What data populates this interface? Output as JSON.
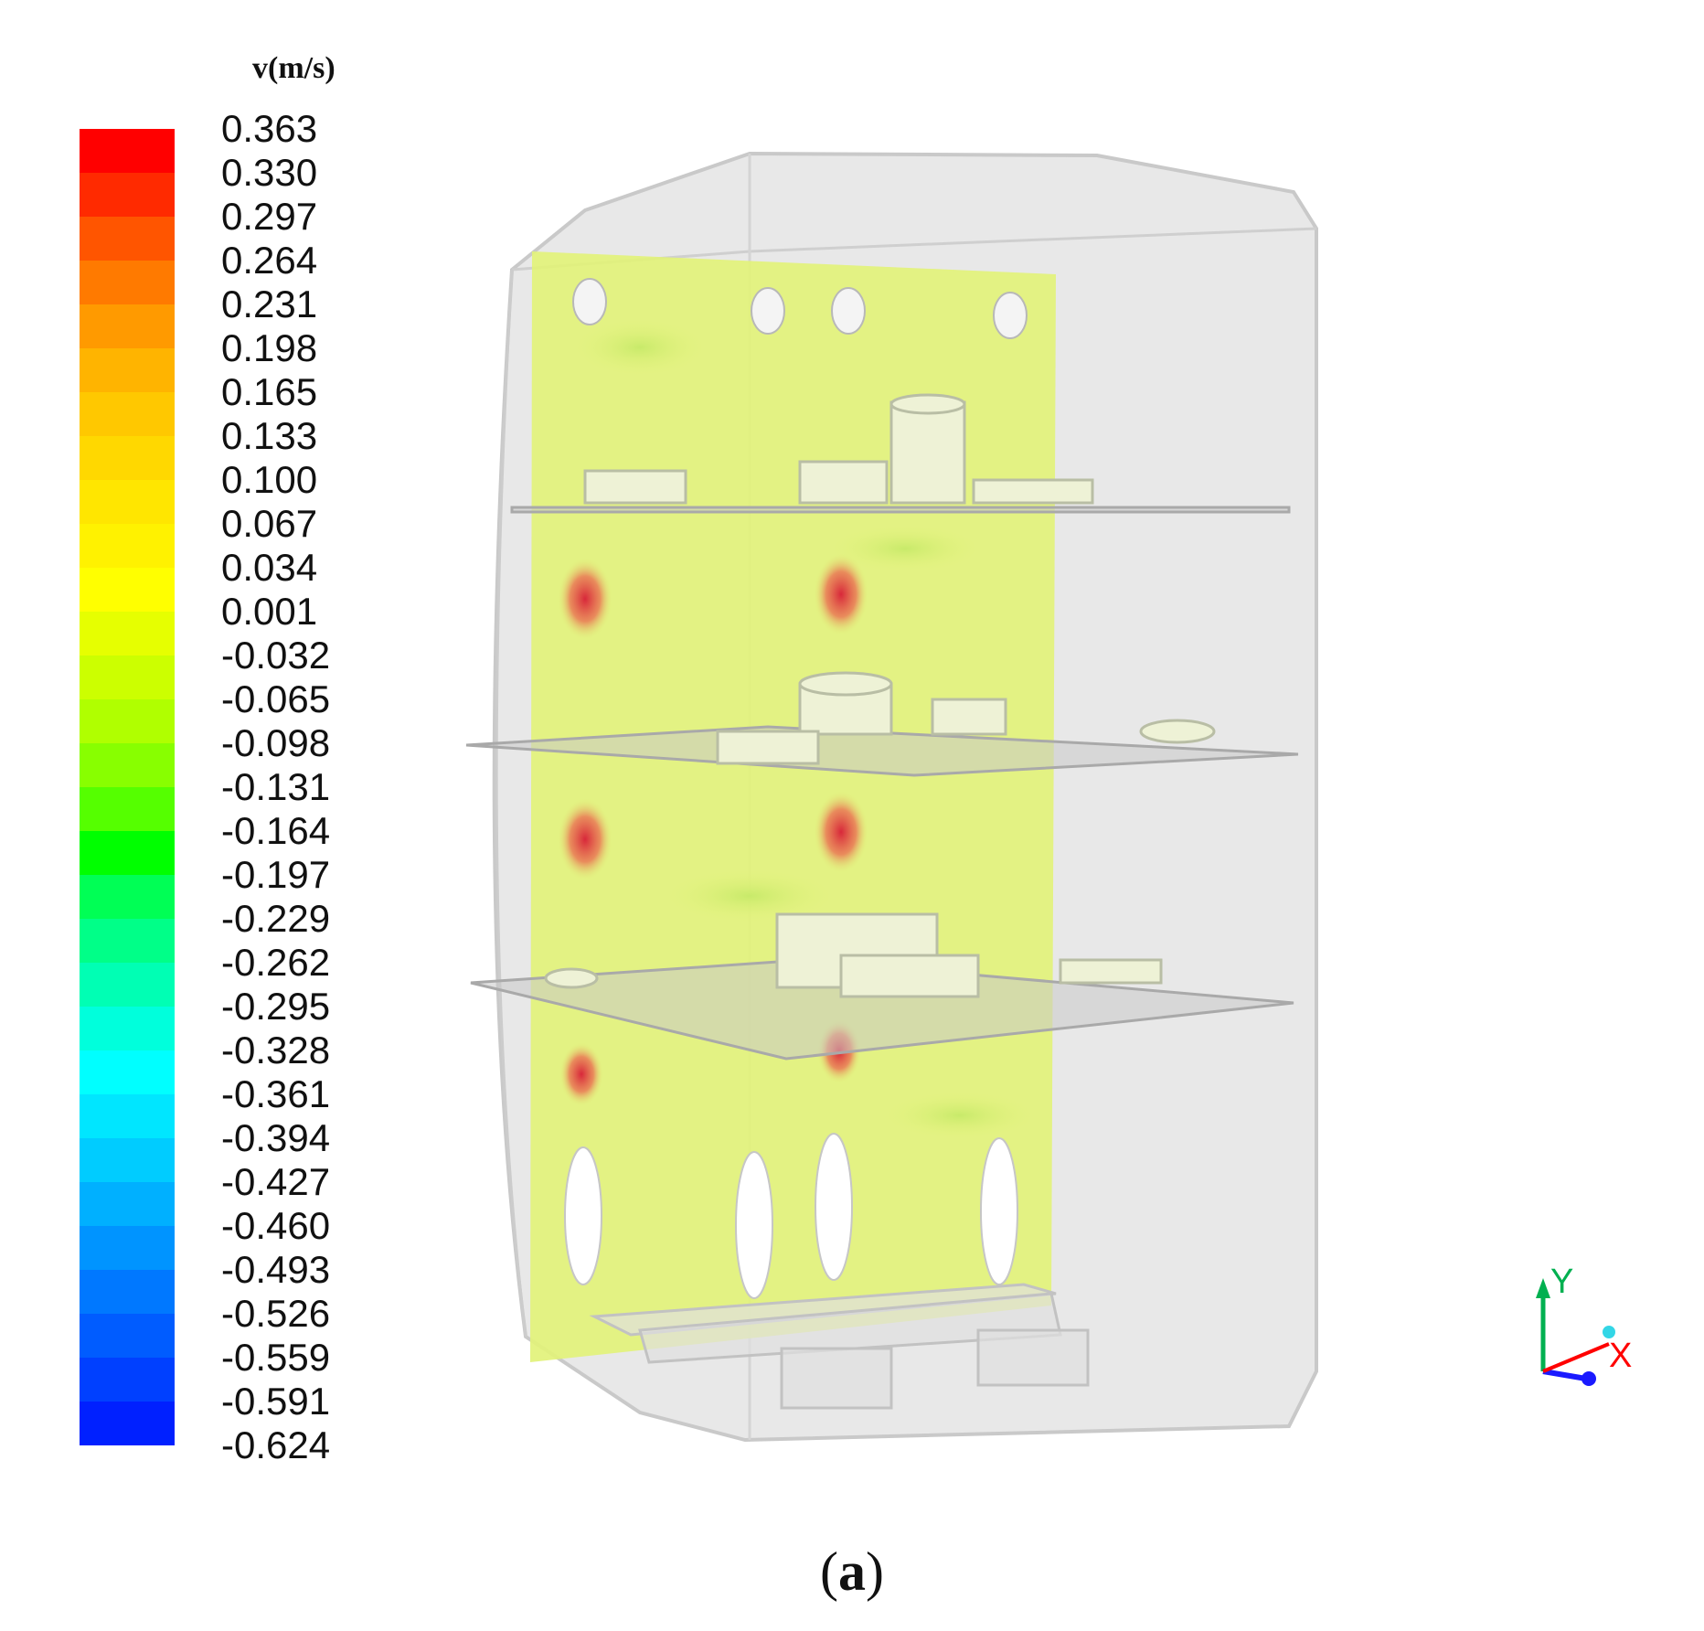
{
  "legend": {
    "title": "v(m/s)",
    "ticks": [
      "0.363",
      "0.330",
      "0.297",
      "0.264",
      "0.231",
      "0.198",
      "0.165",
      "0.133",
      "0.100",
      "0.067",
      "0.034",
      "0.001",
      "-0.032",
      "-0.065",
      "-0.098",
      "-0.131",
      "-0.164",
      "-0.197",
      "-0.229",
      "-0.262",
      "-0.295",
      "-0.328",
      "-0.361",
      "-0.394",
      "-0.427",
      "-0.460",
      "-0.493",
      "-0.526",
      "-0.559",
      "-0.591",
      "-0.624"
    ],
    "colors": [
      "#ff0000",
      "#ff2a00",
      "#ff5500",
      "#ff7a00",
      "#ff9a00",
      "#ffb400",
      "#ffc800",
      "#ffd800",
      "#ffe600",
      "#fff200",
      "#ffff00",
      "#e6ff00",
      "#ccff00",
      "#b0ff00",
      "#88ff00",
      "#55ff00",
      "#00ff00",
      "#00ff55",
      "#00ff88",
      "#00ffb4",
      "#00ffdc",
      "#00ffff",
      "#00e6ff",
      "#00ccff",
      "#00b0ff",
      "#0094ff",
      "#0078ff",
      "#005cff",
      "#0040ff",
      "#0020ff"
    ]
  },
  "axes": {
    "y_label": "Y",
    "x_label": "X",
    "y_color": "#00b050",
    "x_color": "#ff0000",
    "z_color": "#1a1aff"
  },
  "caption": {
    "open": "(",
    "letter": "a",
    "close": ")"
  },
  "contour_plane": {
    "base_color": "#e2f27a",
    "hotspot_color": "#e0303a"
  }
}
